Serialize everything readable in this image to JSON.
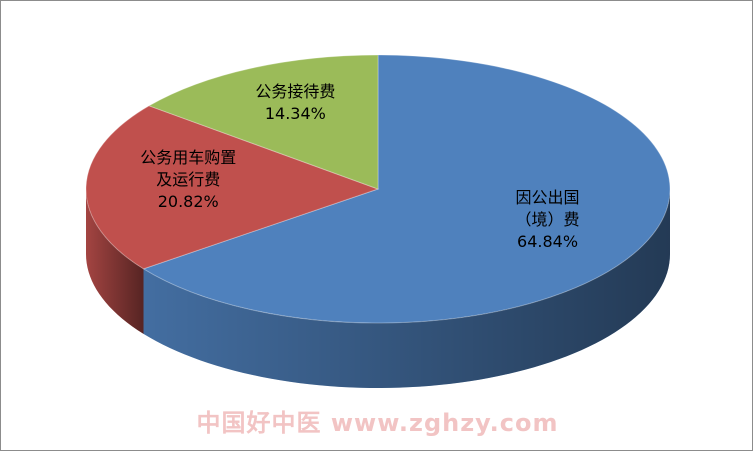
{
  "chart_data": {
    "type": "pie",
    "categories": [
      "因公出国（境）费",
      "公务用车购置及运行费",
      "公务接待费"
    ],
    "values": [
      64.84,
      20.82,
      14.34
    ],
    "value_labels": [
      "64.84%",
      "20.82%",
      "14.34%"
    ],
    "colors": [
      "#4f81bd",
      "#c0504d",
      "#9bbb59"
    ],
    "watermark": "中国好中医 www.zghzy.com"
  }
}
